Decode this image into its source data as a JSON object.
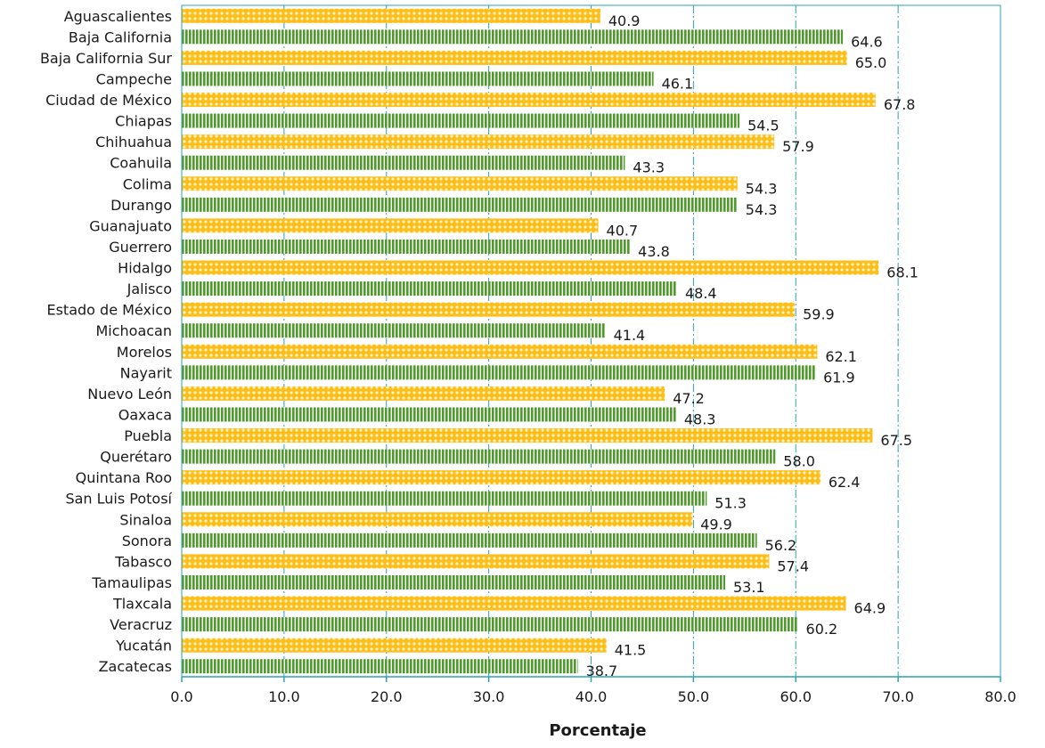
{
  "chart_data": {
    "type": "bar",
    "orientation": "horizontal",
    "title": "",
    "xlabel": "Porcentaje",
    "ylabel": "",
    "xlim": [
      0,
      80
    ],
    "xticks": [
      "0.0",
      "10.0",
      "20.0",
      "30.0",
      "40.0",
      "50.0",
      "60.0",
      "70.0",
      "80.0"
    ],
    "grid": "vertical dash-dot lines at each x tick",
    "legend": "none",
    "categories": [
      "Aguascalientes",
      "Baja California",
      "Baja California Sur",
      "Campeche",
      "Ciudad de México",
      "Chiapas",
      "Chihuahua",
      "Coahuila",
      "Colima",
      "Durango",
      "Guanajuato",
      "Guerrero",
      "Hidalgo",
      "Jalisco",
      "Estado de México",
      "Michoacan",
      "Morelos",
      "Nayarit",
      "Nuevo León",
      "Oaxaca",
      "Puebla",
      "Querétaro",
      "Quintana Roo",
      "San Luis Potosí",
      "Sinaloa",
      "Sonora",
      "Tabasco",
      "Tamaulipas",
      "Tlaxcala",
      "Veracruz",
      "Yucatán",
      "Zacatecas"
    ],
    "values": [
      40.9,
      64.6,
      65.0,
      46.1,
      67.8,
      54.5,
      57.9,
      43.3,
      54.3,
      54.3,
      40.7,
      43.8,
      68.1,
      48.4,
      59.9,
      41.4,
      62.1,
      61.9,
      47.2,
      48.3,
      67.5,
      58.0,
      62.4,
      51.3,
      49.9,
      56.2,
      57.4,
      53.1,
      64.9,
      60.2,
      41.5,
      38.7
    ],
    "value_labels": [
      "40.9",
      "64.6",
      "65.0",
      "46.1",
      "67.8",
      "54.5",
      "57.9",
      "43.3",
      "54.3",
      "54.3",
      "40.7",
      "43.8",
      "68.1",
      "48.4",
      "59.9",
      "41.4",
      "62.1",
      "61.9",
      "47.2",
      "48.3",
      "67.5",
      "58.0",
      "62.4",
      "51.3",
      "49.9",
      "56.2",
      "57.4",
      "53.1",
      "64.9",
      "60.2",
      "41.5",
      "38.7"
    ],
    "bar_fill_pattern": [
      "yellow-dots",
      "green-stripes"
    ],
    "colors": {
      "yellow": "#FDBE1A",
      "yellow_dot": "#FFF3C4",
      "green": "#4E9A2A",
      "green_stripe": "#ffffff",
      "grid": "#2BA3B5",
      "axis": "#2BA3B5",
      "text": "#1a1a1a"
    }
  }
}
